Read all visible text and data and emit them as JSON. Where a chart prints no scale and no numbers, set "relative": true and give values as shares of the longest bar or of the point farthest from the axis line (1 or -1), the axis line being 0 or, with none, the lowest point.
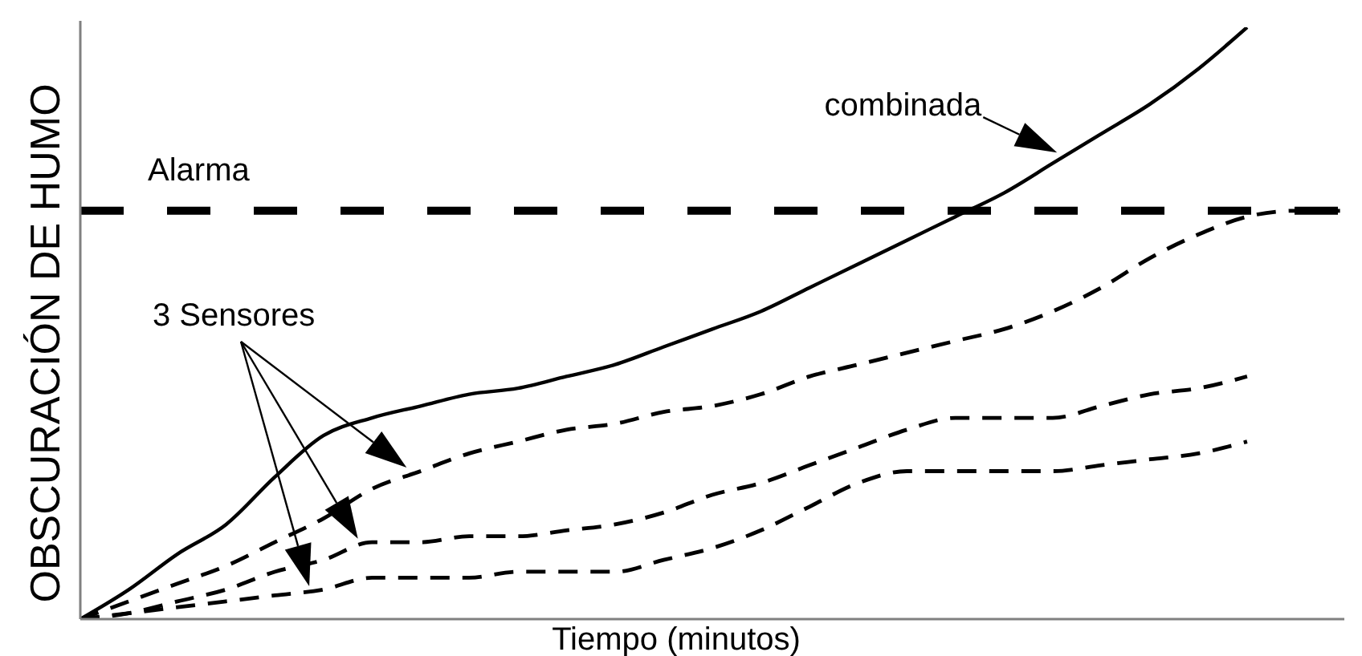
{
  "chart_data": {
    "type": "line",
    "relative": true,
    "xlabel": "Tiempo (minutos)",
    "ylabel": "OBSCURACIÓN DE HUMO",
    "categories": [
      null,
      null,
      null,
      null,
      null,
      null,
      null,
      null,
      null,
      null,
      null,
      null,
      null,
      null,
      null,
      null,
      null,
      null,
      null,
      null,
      null,
      null,
      null,
      null,
      null,
      null,
      null
    ],
    "series": [
      {
        "name": "combinada",
        "color": "#000000",
        "line_style": "solid",
        "values": [
          0,
          0.05,
          0.11,
          0.16,
          0.24,
          0.31,
          0.34,
          0.36,
          0.38,
          0.39,
          0.41,
          0.43,
          0.46,
          0.49,
          0.52,
          0.56,
          0.6,
          0.64,
          0.68,
          0.72,
          0.77,
          0.82,
          0.87,
          0.93,
          1,
          null,
          null
        ]
      },
      {
        "color": "#000000",
        "line_style": "dashed",
        "values": [
          0,
          0.03,
          0.06,
          0.09,
          0.13,
          0.17,
          0.22,
          0.25,
          0.28,
          0.3,
          0.32,
          0.33,
          0.35,
          0.36,
          0.38,
          0.41,
          0.43,
          0.45,
          0.47,
          0.49,
          0.52,
          0.56,
          0.61,
          0.65,
          0.68,
          0.69,
          0.69
        ]
      },
      {
        "color": "#000000",
        "line_style": "dashed",
        "values": [
          0,
          0.01,
          0.03,
          0.05,
          0.08,
          0.1,
          0.13,
          0.13,
          0.14,
          0.14,
          0.15,
          0.16,
          0.18,
          0.21,
          0.23,
          0.26,
          0.29,
          0.32,
          0.34,
          0.34,
          0.34,
          0.36,
          0.38,
          0.39,
          0.41,
          null,
          null
        ]
      },
      {
        "color": "#000000",
        "line_style": "dashed",
        "values": [
          0,
          0.01,
          0.02,
          0.03,
          0.04,
          0.05,
          0.07,
          0.07,
          0.07,
          0.08,
          0.08,
          0.08,
          0.1,
          0.12,
          0.15,
          0.19,
          0.23,
          0.25,
          0.25,
          0.25,
          0.25,
          0.26,
          0.27,
          0.28,
          0.3,
          null,
          null
        ]
      }
    ],
    "ref_lines": [
      {
        "axis": "y",
        "value": 0.69,
        "label": "Alarma",
        "color": "#000000",
        "line_style": "dashed"
      }
    ],
    "annotations": [
      "3 Sensores"
    ]
  }
}
